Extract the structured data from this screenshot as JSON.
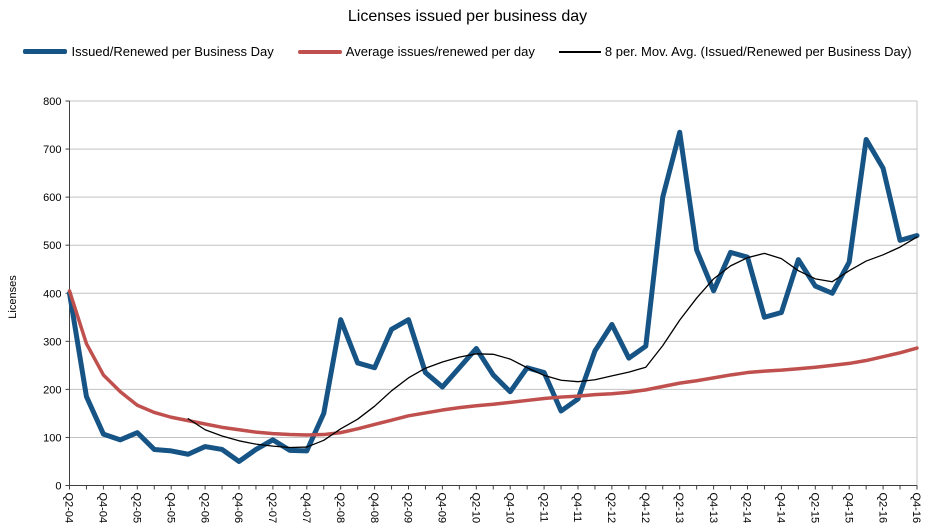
{
  "chart_data": {
    "type": "line",
    "title": "Licenses issued per business day",
    "ylabel": "Licenses",
    "ylim": [
      0,
      800
    ],
    "ytick_step": 100,
    "grid": "horizontal",
    "legend_position": "top",
    "x_label_every": 2,
    "x_label_rotation_deg": 90,
    "categories": [
      "Q2-04",
      "Q3-04",
      "Q4-04",
      "Q1-05",
      "Q2-05",
      "Q3-05",
      "Q4-05",
      "Q1-06",
      "Q2-06",
      "Q3-06",
      "Q4-06",
      "Q1-07",
      "Q2-07",
      "Q3-07",
      "Q4-07",
      "Q1-08",
      "Q2-08",
      "Q3-08",
      "Q4-08",
      "Q1-09",
      "Q2-09",
      "Q3-09",
      "Q4-09",
      "Q1-10",
      "Q2-10",
      "Q3-10",
      "Q4-10",
      "Q1-11",
      "Q2-11",
      "Q3-11",
      "Q4-11",
      "Q1-12",
      "Q2-12",
      "Q3-12",
      "Q4-12",
      "Q1-13",
      "Q2-13",
      "Q3-13",
      "Q4-13",
      "Q1-14",
      "Q2-14",
      "Q3-14",
      "Q4-14",
      "Q1-15",
      "Q2-15",
      "Q3-15",
      "Q4-15",
      "Q1-16",
      "Q2-16",
      "Q3-16",
      "Q4-16"
    ],
    "series": [
      {
        "name": "Issued/Renewed per Business Day",
        "color": "#175486",
        "stroke_width": 5,
        "start_index": 0,
        "values": [
          400,
          185,
          107,
          95,
          110,
          75,
          72,
          65,
          81,
          75,
          50,
          75,
          95,
          73,
          72,
          150,
          345,
          255,
          245,
          325,
          345,
          235,
          205,
          245,
          285,
          230,
          195,
          245,
          235,
          155,
          180,
          280,
          335,
          265,
          290,
          600,
          735,
          490,
          405,
          485,
          475,
          350,
          360,
          470,
          415,
          400,
          465,
          720,
          660,
          510,
          520
        ]
      },
      {
        "name": "Average issues/renewed per day",
        "color": "#C0504D",
        "stroke_width": 3.5,
        "start_index": 0,
        "values": [
          405,
          295,
          230,
          195,
          167,
          152,
          142,
          135,
          128,
          121,
          116,
          111,
          108,
          106,
          105,
          106,
          110,
          118,
          127,
          136,
          145,
          151,
          157,
          162,
          166,
          169,
          173,
          177,
          181,
          184,
          186,
          189,
          191,
          194,
          199,
          206,
          213,
          218,
          224,
          230,
          235,
          238,
          240,
          243,
          246,
          250,
          254,
          260,
          268,
          276,
          286
        ]
      },
      {
        "name": "8 per. Mov. Avg. (Issued/Renewed per Business Day)",
        "color": "#000000",
        "stroke_width": 1.3,
        "start_index": 7,
        "values": [
          139,
          116,
          103,
          93,
          86,
          82,
          79,
          80,
          94,
          118,
          138,
          165,
          197,
          224,
          244,
          257,
          267,
          274,
          273,
          263,
          245,
          229,
          219,
          216,
          220,
          228,
          236,
          246,
          291,
          344,
          390,
          430,
          457,
          474,
          483,
          472,
          447,
          430,
          424,
          447,
          467,
          480,
          496,
          517
        ]
      }
    ],
    "colors": {
      "gridline": "#C3C3C3",
      "axis": "#404040",
      "plot_border_right": "#C3C3C3",
      "background": "#FFFFFF"
    }
  }
}
